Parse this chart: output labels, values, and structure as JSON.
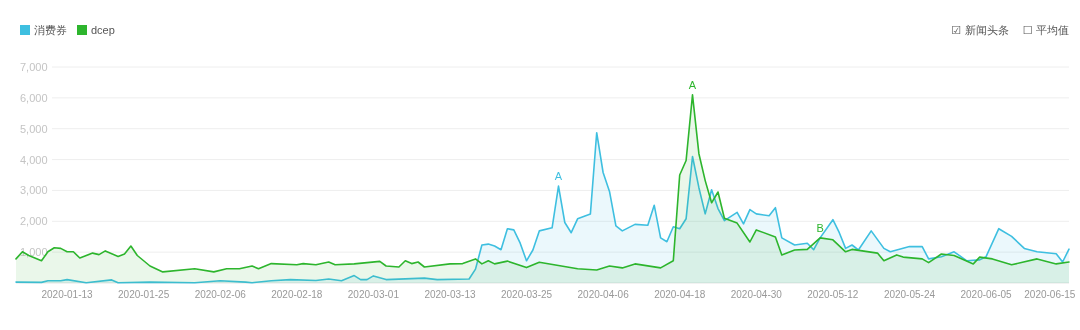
{
  "chart_data": {
    "type": "area",
    "annotations": [
      {
        "text": "A",
        "x": "2020-03-30",
        "y": 3140
      },
      {
        "text": "A",
        "x": "2020-04-20",
        "y": 6100
      },
      {
        "text": "B",
        "x": "2020-05-10",
        "y": 1460
      },
      "☑ 新闻头条",
      "☐ 平均值"
    ],
    "series": [
      {
        "name": "消费券",
        "color": "#3ebfe0",
        "x": [
          "2020-01-05",
          "2020-01-09",
          "2020-01-10",
          "2020-01-12",
          "2020-01-13",
          "2020-01-16",
          "2020-01-20",
          "2020-01-21",
          "2020-01-26",
          "2020-02-02",
          "2020-02-06",
          "2020-02-10",
          "2020-02-11",
          "2020-02-14",
          "2020-02-17",
          "2020-02-21",
          "2020-02-23",
          "2020-02-25",
          "2020-02-27",
          "2020-02-28",
          "2020-02-29",
          "2020-03-01",
          "2020-03-03",
          "2020-03-09",
          "2020-03-11",
          "2020-03-16",
          "2020-03-17",
          "2020-03-18",
          "2020-03-19",
          "2020-03-20",
          "2020-03-21",
          "2020-03-22",
          "2020-03-23",
          "2020-03-24",
          "2020-03-25",
          "2020-03-26",
          "2020-03-27",
          "2020-03-29",
          "2020-03-30",
          "2020-03-31",
          "2020-04-01",
          "2020-04-02",
          "2020-04-04",
          "2020-04-05",
          "2020-04-06",
          "2020-04-07",
          "2020-04-08",
          "2020-04-09",
          "2020-04-11",
          "2020-04-13",
          "2020-04-14",
          "2020-04-15",
          "2020-04-16",
          "2020-04-17",
          "2020-04-18",
          "2020-04-19",
          "2020-04-20",
          "2020-04-21",
          "2020-04-22",
          "2020-04-23",
          "2020-04-24",
          "2020-04-25",
          "2020-04-27",
          "2020-04-28",
          "2020-04-29",
          "2020-04-30",
          "2020-05-02",
          "2020-05-03",
          "2020-05-04",
          "2020-05-06",
          "2020-05-08",
          "2020-05-09",
          "2020-05-10",
          "2020-05-12",
          "2020-05-13",
          "2020-05-14",
          "2020-05-15",
          "2020-05-16",
          "2020-05-18",
          "2020-05-20",
          "2020-05-21",
          "2020-05-24",
          "2020-05-26",
          "2020-05-27",
          "2020-05-29",
          "2020-05-31",
          "2020-06-02",
          "2020-06-04",
          "2020-06-05",
          "2020-06-07",
          "2020-06-09",
          "2020-06-11",
          "2020-06-13",
          "2020-06-16",
          "2020-06-17",
          "2020-06-18"
        ],
        "values": [
          30,
          20,
          70,
          70,
          110,
          10,
          100,
          10,
          30,
          10,
          70,
          30,
          10,
          70,
          110,
          80,
          130,
          70,
          240,
          110,
          110,
          230,
          110,
          160,
          110,
          130,
          450,
          1230,
          1260,
          1200,
          1080,
          1760,
          1720,
          1290,
          720,
          1070,
          1690,
          1790,
          3140,
          1960,
          1630,
          2080,
          2240,
          4870,
          3580,
          2970,
          1850,
          1690,
          1900,
          1870,
          2520,
          1460,
          1340,
          1820,
          1760,
          2080,
          4100,
          3090,
          2240,
          3020,
          2410,
          2020,
          2290,
          1920,
          2380,
          2240,
          2180,
          2440,
          1460,
          1230,
          1290,
          1080,
          1460,
          2050,
          1630,
          1120,
          1230,
          1070,
          1690,
          1120,
          1010,
          1180,
          1180,
          780,
          850,
          1010,
          720,
          750,
          850,
          1760,
          1510,
          1120,
          1010,
          950,
          680,
          1100
        ]
      },
      {
        "name": "dcep",
        "color": "#2db52d",
        "x": [
          "2020-01-05",
          "2020-01-06",
          "2020-01-07",
          "2020-01-09",
          "2020-01-10",
          "2020-01-11",
          "2020-01-12",
          "2020-01-13",
          "2020-01-14",
          "2020-01-15",
          "2020-01-17",
          "2020-01-18",
          "2020-01-19",
          "2020-01-21",
          "2020-01-22",
          "2020-01-23",
          "2020-01-24",
          "2020-01-26",
          "2020-01-28",
          "2020-02-02",
          "2020-02-05",
          "2020-02-07",
          "2020-02-09",
          "2020-02-11",
          "2020-02-12",
          "2020-02-14",
          "2020-02-18",
          "2020-02-19",
          "2020-02-21",
          "2020-02-23",
          "2020-02-24",
          "2020-02-27",
          "2020-03-02",
          "2020-03-03",
          "2020-03-05",
          "2020-03-06",
          "2020-03-07",
          "2020-03-08",
          "2020-03-09",
          "2020-03-13",
          "2020-03-15",
          "2020-03-17",
          "2020-03-18",
          "2020-03-19",
          "2020-03-20",
          "2020-03-22",
          "2020-03-25",
          "2020-03-27",
          "2020-04-02",
          "2020-04-05",
          "2020-04-07",
          "2020-04-09",
          "2020-04-11",
          "2020-04-15",
          "2020-04-17",
          "2020-04-18",
          "2020-04-19",
          "2020-04-20",
          "2020-04-21",
          "2020-04-22",
          "2020-04-23",
          "2020-04-24",
          "2020-04-25",
          "2020-04-27",
          "2020-04-29",
          "2020-04-30",
          "2020-05-03",
          "2020-05-04",
          "2020-05-06",
          "2020-05-08",
          "2020-05-10",
          "2020-05-12",
          "2020-05-14",
          "2020-05-15",
          "2020-05-19",
          "2020-05-20",
          "2020-05-22",
          "2020-05-23",
          "2020-05-26",
          "2020-05-27",
          "2020-05-29",
          "2020-05-31",
          "2020-06-03",
          "2020-06-04",
          "2020-06-06",
          "2020-06-09",
          "2020-06-13",
          "2020-06-16",
          "2020-06-18"
        ],
        "values": [
          780,
          1010,
          890,
          720,
          1010,
          1140,
          1120,
          1010,
          1010,
          810,
          970,
          920,
          1040,
          860,
          940,
          1200,
          890,
          550,
          360,
          460,
          360,
          460,
          460,
          550,
          460,
          630,
          590,
          630,
          590,
          680,
          590,
          620,
          700,
          550,
          520,
          720,
          630,
          680,
          520,
          620,
          630,
          780,
          620,
          720,
          620,
          710,
          500,
          670,
          460,
          420,
          550,
          490,
          620,
          490,
          720,
          3500,
          3970,
          6100,
          4190,
          3320,
          2600,
          2950,
          2100,
          1940,
          1330,
          1720,
          1490,
          910,
          1070,
          1090,
          1460,
          1400,
          1010,
          1090,
          970,
          720,
          910,
          840,
          780,
          660,
          940,
          890,
          620,
          840,
          780,
          590,
          780,
          620,
          680
        ]
      }
    ],
    "xlim": [
      "2020-01-05",
      "2020-06-18"
    ],
    "xticks": [
      "2020-01-13",
      "2020-01-25",
      "2020-02-06",
      "2020-02-18",
      "2020-03-01",
      "2020-03-13",
      "2020-03-25",
      "2020-04-06",
      "2020-04-18",
      "2020-04-30",
      "2020-05-12",
      "2020-05-24",
      "2020-06-05",
      "2020-06-15"
    ],
    "ylim": [
      0,
      7000
    ],
    "yticks": [
      {
        "value": 1000,
        "label": "1,000"
      },
      {
        "value": 2000,
        "label": "2,000"
      },
      {
        "value": 3000,
        "label": "3,000"
      },
      {
        "value": 4000,
        "label": "4,000"
      },
      {
        "value": 5000,
        "label": "5,000"
      },
      {
        "value": 6000,
        "label": "6,000"
      },
      {
        "value": 7000,
        "label": "7,000"
      }
    ],
    "grid": "y",
    "legend": "top left",
    "marker": "none",
    "line_style": "solid"
  }
}
